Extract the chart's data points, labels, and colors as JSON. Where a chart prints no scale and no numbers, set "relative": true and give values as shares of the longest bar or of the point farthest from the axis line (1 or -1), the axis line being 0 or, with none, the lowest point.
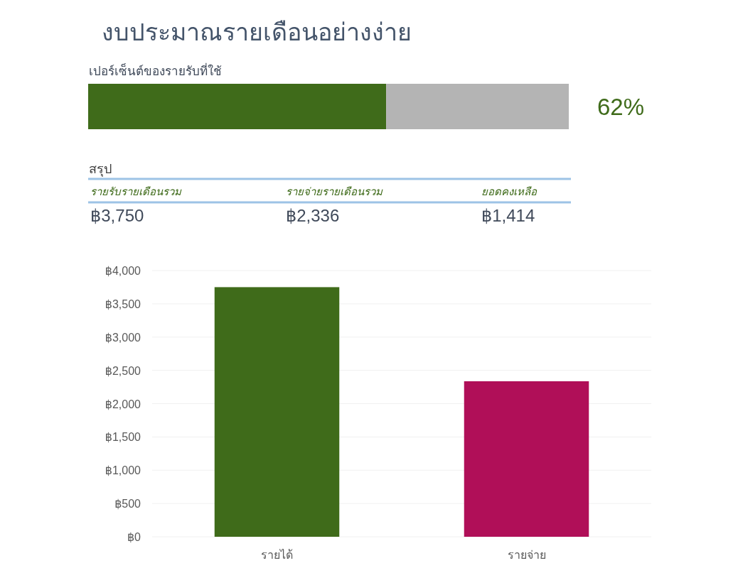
{
  "chart_data": [
    {
      "type": "bar",
      "orientation": "horizontal",
      "stacked": true,
      "relative": true,
      "title": "งบประมาณรายเดือนอย่างง่าย",
      "subtitle": "เปอร์เซ็นต์ของรายรับที่ใช้",
      "categories": [
        null
      ],
      "series": [
        {
          "color": "#3f6b1a",
          "values": [
            0.62
          ]
        },
        {
          "color": "#b4b4b4",
          "values": [
            0.38
          ]
        }
      ],
      "annotations": [
        "62%"
      ]
    },
    {
      "type": "other",
      "title": "สรุป",
      "categories": [
        "รายรับรายเดือนรวม",
        "รายจ่ายรายเดือนรวม",
        "ยอดคงเหลือ"
      ],
      "value_labels": [
        "฿3,750",
        "฿2,336",
        "฿1,414"
      ]
    },
    {
      "type": "bar",
      "categories": [
        "รายได้",
        "รายจ่าย"
      ],
      "values": [
        3750,
        2336
      ],
      "colors": [
        "#3f6b1a",
        "#b00f58"
      ],
      "ylim": [
        0,
        4000
      ],
      "yticks": [
        {
          "value": 0,
          "label": "฿0"
        },
        {
          "value": 500,
          "label": "฿500"
        },
        {
          "value": 1000,
          "label": "฿1,000"
        },
        {
          "value": 1500,
          "label": "฿1,500"
        },
        {
          "value": 2000,
          "label": "฿2,000"
        },
        {
          "value": 2500,
          "label": "฿2,500"
        },
        {
          "value": 3000,
          "label": "฿3,000"
        },
        {
          "value": 3500,
          "label": "฿3,500"
        },
        {
          "value": 4000,
          "label": "฿4,000"
        }
      ],
      "grid": "y"
    }
  ]
}
